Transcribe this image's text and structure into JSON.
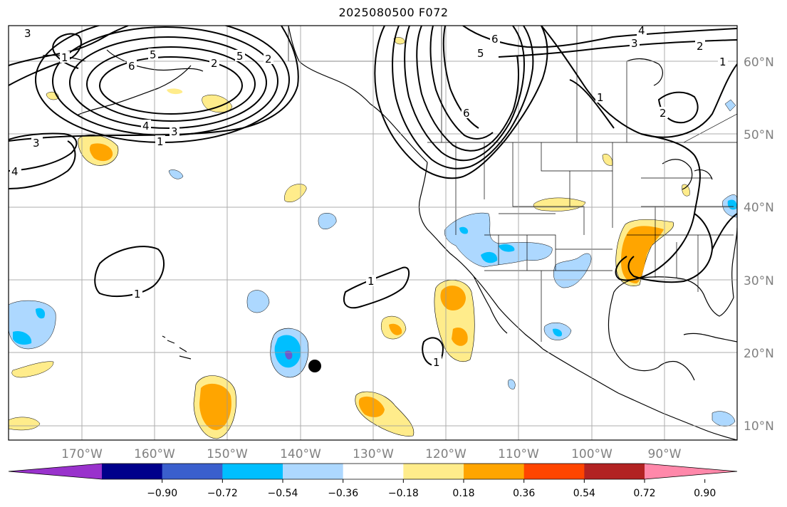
{
  "title": "2025080500 F072",
  "map": {
    "lon_labels": [
      "170°W",
      "160°W",
      "150°W",
      "140°W",
      "130°W",
      "120°W",
      "110°W",
      "100°W",
      "90°W"
    ],
    "lat_labels": [
      "60°N",
      "50°N",
      "40°N",
      "30°N",
      "20°N",
      "10°N"
    ],
    "colors": {
      "land_line": "#000000",
      "grid": "#9a9a9a",
      "contour": "#000000",
      "light_yellow": "#ffec8b",
      "orange": "#ffa500",
      "light_blue": "#add8ff",
      "blue": "#00bfff",
      "purple_blue": "#6a5acd"
    },
    "contour_labels": {
      "three_w": "3",
      "one_nw": "1",
      "six_a": "6",
      "five_a": "5",
      "two_a": "2",
      "three_m": "3",
      "four_m": "4",
      "one_m": "1",
      "three_l": "3",
      "four_l": "4",
      "five_a2": "5",
      "two_a2": "2",
      "six_b": "6",
      "five_b": "5",
      "six_c": "6",
      "four_ne": "4",
      "three_ne": "3",
      "two_ne": "2",
      "one_ne": "1",
      "one_can": "1",
      "two_can": "2",
      "one_sw": "1",
      "one_sc": "1",
      "one_hi": "1",
      "one_mx": "1"
    }
  },
  "colorbar": {
    "colors": [
      "#9932cc",
      "#00008b",
      "#3a5fcd",
      "#00bfff",
      "#add8ff",
      "#ffffff",
      "#ffec8b",
      "#ffa500",
      "#ff4500",
      "#b22222",
      "#ff88aa"
    ],
    "ticks": [
      "−0.90",
      "−0.72",
      "−0.54",
      "−0.36",
      "−0.18",
      "0.18",
      "0.36",
      "0.54",
      "0.72",
      "0.90"
    ]
  }
}
